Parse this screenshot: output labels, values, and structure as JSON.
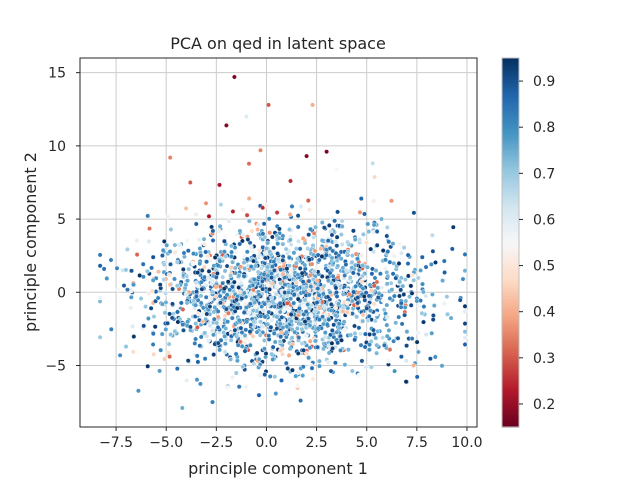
{
  "chart_data": {
    "type": "scatter",
    "title": "PCA on qed in latent space",
    "xlabel": "principle component 1",
    "ylabel": "principle component 2",
    "xlim": [
      -9.3,
      10.5
    ],
    "ylim": [
      -9.2,
      16.0
    ],
    "xticks": [
      -7.5,
      -5.0,
      -2.5,
      0.0,
      2.5,
      5.0,
      7.5,
      10.0
    ],
    "xtick_labels": [
      "−7.5",
      "−5.0",
      "−2.5",
      "0.0",
      "2.5",
      "5.0",
      "7.5",
      "10.0"
    ],
    "yticks": [
      -5,
      0,
      5,
      10,
      15
    ],
    "ytick_labels": [
      "−5",
      "0",
      "5",
      "10",
      "15"
    ],
    "grid": true,
    "colormap": "RdBu",
    "color_range": [
      0.15,
      0.95
    ],
    "colorbar_ticks": [
      0.2,
      0.3,
      0.4,
      0.5,
      0.6,
      0.7,
      0.8,
      0.9
    ],
    "colorbar_tick_labels": [
      "0.2",
      "0.3",
      "0.4",
      "0.5",
      "0.6",
      "0.7",
      "0.8",
      "0.9"
    ],
    "point_count": 5000,
    "cloud_center": [
      1.0,
      -0.3
    ],
    "cloud_spread": [
      3.3,
      2.4
    ],
    "outliers": [
      {
        "x": -1.6,
        "y": 14.7,
        "v": 0.17
      },
      {
        "x": -2.0,
        "y": 11.4,
        "v": 0.18
      },
      {
        "x": 3.0,
        "y": 9.6,
        "v": 0.17
      },
      {
        "x": 2.0,
        "y": 9.3,
        "v": 0.18
      },
      {
        "x": 0.1,
        "y": 12.8,
        "v": 0.3
      },
      {
        "x": -4.8,
        "y": 9.2,
        "v": 0.35
      },
      {
        "x": 2.3,
        "y": 12.8,
        "v": 0.4
      },
      {
        "x": -0.3,
        "y": 9.7,
        "v": 0.35
      },
      {
        "x": 1.2,
        "y": 7.6,
        "v": 0.25
      },
      {
        "x": -3.8,
        "y": 7.5,
        "v": 0.3
      },
      {
        "x": 3.5,
        "y": 8.4,
        "v": 0.55
      },
      {
        "x": -8.1,
        "y": 1.6,
        "v": 0.85
      },
      {
        "x": -4.2,
        "y": -7.9,
        "v": 0.75
      },
      {
        "x": 9.8,
        "y": 0.9,
        "v": 0.8
      },
      {
        "x": 9.0,
        "y": -0.3,
        "v": 0.7
      },
      {
        "x": -1.0,
        "y": 12.0,
        "v": 0.6
      },
      {
        "x": 5.3,
        "y": 8.8,
        "v": 0.65
      },
      {
        "x": 1.7,
        "y": -7.4,
        "v": 0.85
      },
      {
        "x": 8.3,
        "y": 2.8,
        "v": 0.9
      },
      {
        "x": -7.3,
        "y": -4.3,
        "v": 0.8
      }
    ]
  }
}
